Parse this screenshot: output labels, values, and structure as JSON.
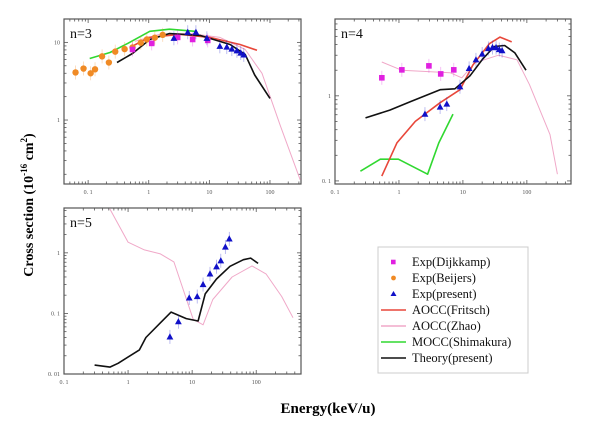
{
  "chart_data": {
    "type": "line",
    "figure": {
      "ylabel": "Cross section (10",
      "ylabel_sup": "-16",
      "ylabel_unit": " cm",
      "ylabel_unit_sup": "2",
      "ylabel_close": ")",
      "xlabel": "Energy(keV/u)",
      "xscale": "log",
      "yscale": "log",
      "legend_position": "bottom-right"
    },
    "legend": [
      {
        "label": "Exp(Dijkkamp)",
        "kind": "square",
        "color": "#e020e0"
      },
      {
        "label": "Exp(Beijers)",
        "kind": "circle",
        "color": "#f08a24"
      },
      {
        "label": "Exp(present)",
        "kind": "triangle",
        "color": "#1010c8"
      },
      {
        "label": "AOCC(Fritsch)",
        "kind": "line",
        "color": "#e8473a"
      },
      {
        "label": "AOCC(Zhao)",
        "kind": "line",
        "color": "#f0a8c8"
      },
      {
        "label": "MOCC(Shimakura)",
        "kind": "line",
        "color": "#30d830"
      },
      {
        "label": "Theory(present)",
        "kind": "line",
        "color": "#111111"
      }
    ],
    "panels": [
      {
        "label": "n=3",
        "xlim": [
          0.04,
          325
        ],
        "ylim": [
          0.15,
          20
        ],
        "xticks": [
          {
            "v": 0.1,
            "t": "0. 1"
          },
          {
            "v": 1,
            "t": "1"
          },
          {
            "v": 10,
            "t": "10"
          },
          {
            "v": 100,
            "t": "100"
          }
        ],
        "yticks": [
          {
            "v": 1,
            "t": "1"
          },
          {
            "v": 10,
            "t": "10"
          }
        ],
        "series": [
          {
            "name": "AOCC(Zhao)",
            "x": [
              0.59,
              1.5,
              4.8,
              15,
              39,
              74,
              147,
              315
            ],
            "y": [
              10.3,
              12.7,
              13.0,
              11.6,
              8.1,
              4.0,
              0.86,
              0.17
            ]
          },
          {
            "name": "MOCC(Shimakura)",
            "x": [
              0.106,
              0.23,
              0.45,
              1.04,
              2.2,
              5.8
            ],
            "y": [
              6.2,
              7.4,
              9.7,
              13.9,
              14.8,
              13.9
            ]
          },
          {
            "name": "AOCC(Fritsch)",
            "x": [
              0.49,
              1.0,
              3.3,
              10.2,
              32,
              61
            ],
            "y": [
              8.6,
              11.6,
              12.7,
              11.6,
              9.4,
              7.9
            ]
          },
          {
            "name": "Theory(present)",
            "x": [
              0.3,
              0.54,
              1.04,
              2.2,
              7.0,
              22,
              39,
              56,
              100
            ],
            "y": [
              5.5,
              7.2,
              10.9,
              13.0,
              12.3,
              9.4,
              7.0,
              3.8,
              1.9
            ]
          },
          {
            "name": "Exp(Beijers)",
            "x": [
              0.062,
              0.084,
              0.11,
              0.13,
              0.17,
              0.22,
              0.28,
              0.4,
              0.54,
              0.74,
              0.93,
              1.26,
              1.7
            ],
            "y": [
              4.1,
              4.6,
              4.0,
              4.5,
              6.6,
              5.5,
              7.6,
              8.2,
              8.6,
              9.9,
              10.9,
              11.5,
              12.5
            ]
          },
          {
            "name": "Exp(Dijkkamp)",
            "x": [
              0.54,
              1.12,
              3.0,
              5.3,
              9.4
            ],
            "y": [
              8.1,
              9.7,
              11.6,
              10.9,
              10.6
            ]
          },
          {
            "name": "Exp(present)",
            "x": [
              2.6,
              4.4,
              6.0,
              9.1,
              14.9,
              19.4,
              23.5,
              28.5,
              33,
              37
            ],
            "y": [
              11.3,
              13.5,
              13.5,
              11.3,
              8.9,
              8.7,
              8.2,
              7.8,
              7.3,
              6.9
            ]
          }
        ]
      },
      {
        "label": "n=4",
        "xlim": [
          0.1,
          490
        ],
        "ylim": [
          0.092,
          8.0
        ],
        "xticks": [
          {
            "v": 0.1,
            "t": "0. 1"
          },
          {
            "v": 1,
            "t": "1"
          },
          {
            "v": 10,
            "t": "10"
          },
          {
            "v": 100,
            "t": "100"
          }
        ],
        "yticks": [
          {
            "v": 0.1,
            "t": "0. 1"
          },
          {
            "v": 1,
            "t": "1"
          }
        ],
        "series": [
          {
            "name": "AOCC(Zhao)",
            "x": [
              0.54,
              1.1,
              6.3,
              9.6,
              15.5,
              36,
              70,
              110,
              230,
              300
            ],
            "y": [
              2.5,
              2.0,
              1.87,
              1.63,
              2.45,
              3.0,
              2.65,
              1.35,
              0.35,
              0.12
            ]
          },
          {
            "name": "MOCC(Shimakura)",
            "x": [
              0.25,
              0.51,
              0.98,
              2.8,
              4.2,
              7.0
            ],
            "y": [
              0.13,
              0.18,
              0.18,
              0.12,
              0.28,
              0.61
            ]
          },
          {
            "name": "AOCC(Fritsch)",
            "x": [
              0.54,
              0.93,
              1.8,
              4.4,
              9.0,
              14.3,
              26,
              38,
              58
            ],
            "y": [
              0.114,
              0.28,
              0.5,
              0.83,
              1.18,
              2.3,
              4.1,
              4.9,
              4.3
            ]
          },
          {
            "name": "Theory(present)",
            "x": [
              0.3,
              0.72,
              1.5,
              4.4,
              7.5,
              12.9,
              20.5,
              31,
              45,
              65,
              97
            ],
            "y": [
              0.55,
              0.68,
              0.85,
              1.18,
              1.21,
              1.72,
              2.72,
              3.8,
              3.9,
              3.2,
              2.0
            ]
          },
          {
            "name": "Exp(Dijkkamp)",
            "x": [
              0.54,
              1.11,
              2.94,
              4.5,
              7.2
            ],
            "y": [
              1.63,
              2.02,
              2.25,
              1.81,
              2.02
            ]
          },
          {
            "name": "Exp(present)",
            "x": [
              2.55,
              4.4,
              5.6,
              9.0,
              12.5,
              16,
              20,
              25,
              29,
              33,
              37,
              41
            ],
            "y": [
              0.61,
              0.74,
              0.8,
              1.28,
              2.1,
              2.65,
              3.1,
              3.6,
              3.7,
              3.7,
              3.5,
              3.4
            ]
          }
        ]
      },
      {
        "label": "n=5",
        "xlim": [
          0.1,
          500
        ],
        "ylim": [
          0.01,
          5.5
        ],
        "xticks": [
          {
            "v": 0.1,
            "t": "0. 1"
          },
          {
            "v": 1,
            "t": "1"
          },
          {
            "v": 10,
            "t": "10"
          },
          {
            "v": 100,
            "t": "100"
          }
        ],
        "yticks": [
          {
            "v": 0.01,
            "t": "0. 01"
          },
          {
            "v": 0.1,
            "t": "0. 1"
          },
          {
            "v": 1,
            "t": "1"
          }
        ],
        "series": [
          {
            "name": "AOCC(Zhao)",
            "x": [
              0.52,
              1.0,
              1.8,
              3.2,
              5.2,
              10.4,
              14.8,
              21,
              42,
              86,
              142,
              250,
              375
            ],
            "y": [
              5.3,
              1.5,
              1.12,
              0.96,
              0.71,
              0.08,
              0.065,
              0.17,
              0.4,
              0.61,
              0.45,
              0.19,
              0.085
            ]
          },
          {
            "name": "Theory(present)",
            "x": [
              0.3,
              0.52,
              0.7,
              1.5,
              1.9,
              3.2,
              4.7,
              8.1,
              12.4,
              16,
              24,
              39,
              63,
              82,
              107
            ],
            "y": [
              0.014,
              0.013,
              0.015,
              0.025,
              0.04,
              0.07,
              0.105,
              0.082,
              0.075,
              0.21,
              0.37,
              0.6,
              0.77,
              0.82,
              0.67
            ]
          },
          {
            "name": "Exp(present)",
            "x": [
              4.5,
              6.1,
              9.0,
              12.0,
              14.8,
              19,
              24,
              28,
              33,
              38
            ],
            "y": [
              0.041,
              0.073,
              0.18,
              0.19,
              0.3,
              0.45,
              0.59,
              0.74,
              1.25,
              1.7
            ]
          }
        ]
      }
    ]
  }
}
